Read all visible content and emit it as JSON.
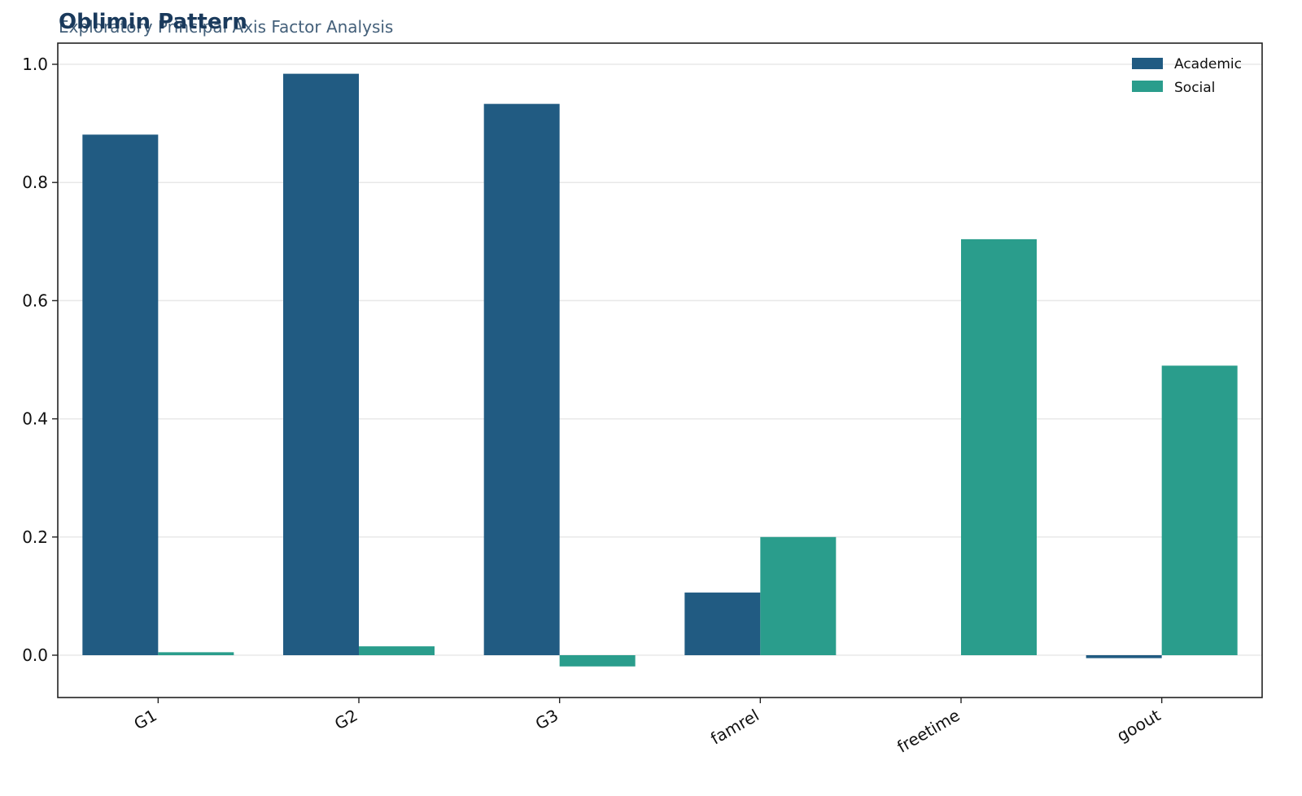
{
  "chart_data": {
    "type": "bar",
    "title": "Oblimin Pattern",
    "subtitle": "Exploratory Principal Axis Factor Analysis",
    "xlabel": "",
    "ylabel": "",
    "categories": [
      "G1",
      "G2",
      "G3",
      "famrel",
      "freetime",
      "goout"
    ],
    "series": [
      {
        "name": "Academic",
        "color": "#215b82",
        "values": [
          0.881,
          0.984,
          0.933,
          0.106,
          0.0,
          -0.005
        ]
      },
      {
        "name": "Social",
        "color": "#2a9d8c",
        "values": [
          0.005,
          0.015,
          -0.019,
          0.2,
          0.704,
          0.49
        ]
      }
    ],
    "yticks": [
      0.0,
      0.2,
      0.4,
      0.6,
      0.8,
      1.0
    ],
    "ylim": [
      -0.07,
      1.035
    ],
    "grid": "horizontal",
    "legend_position": "top-right"
  }
}
